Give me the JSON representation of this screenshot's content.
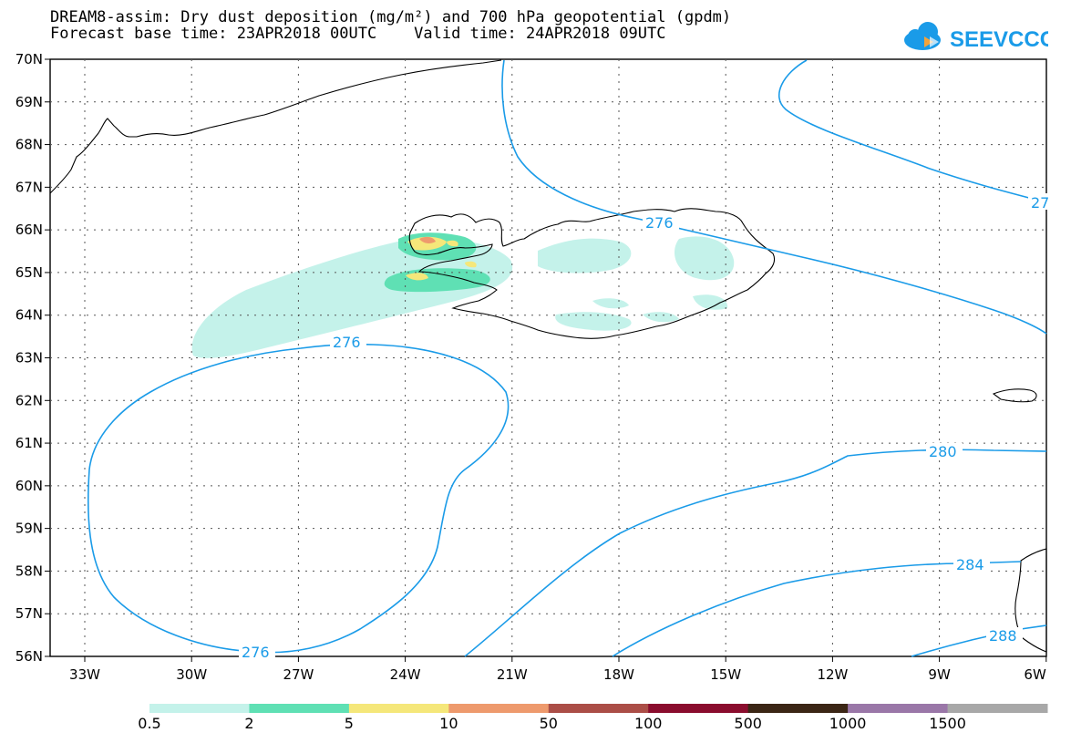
{
  "header": {
    "title_line1": "DREAM8-assim: Dry dust deposition (mg/m²) and 700 hPa geopotential (gpdm)",
    "title_line2": "Forecast base time: 23APR2018 00UTC    Valid time: 24APR2018 09UTC",
    "logo_text": "SEEVCCC"
  },
  "map": {
    "lat_labels": [
      "70N",
      "69N",
      "68N",
      "67N",
      "66N",
      "65N",
      "64N",
      "63N",
      "62N",
      "61N",
      "60N",
      "59N",
      "58N",
      "57N",
      "56N"
    ],
    "lon_labels": [
      "33W",
      "30W",
      "27W",
      "24W",
      "21W",
      "18W",
      "15W",
      "12W",
      "9W",
      "6W"
    ],
    "contour_labels": [
      "276",
      "276",
      "276",
      "27",
      "280",
      "284",
      "288"
    ],
    "colors": {
      "contour": "#1a9be8",
      "coast": "#000000"
    }
  },
  "legend": {
    "labels": [
      "0.5",
      "2",
      "5",
      "10",
      "50",
      "100",
      "500",
      "1000",
      "1500"
    ],
    "colors": [
      "#c4f2ea",
      "#5fe0b4",
      "#f5e77a",
      "#ee9a6d",
      "#ab4e47",
      "#8a0d2e",
      "#3b2615",
      "#9a77a8",
      "#a8a8a8"
    ]
  }
}
